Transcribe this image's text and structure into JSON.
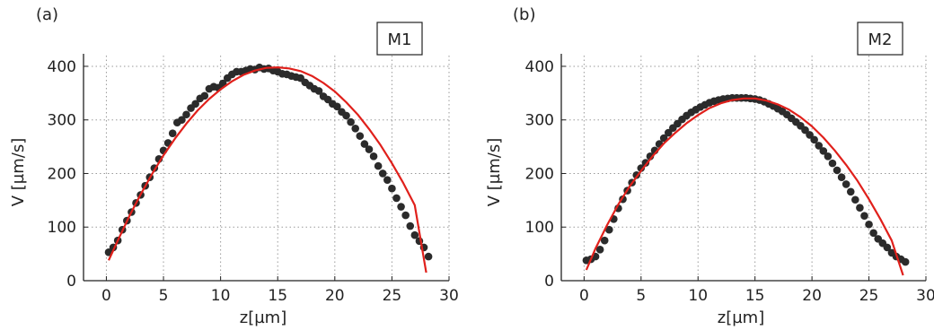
{
  "chart_data": [
    {
      "type": "scatter",
      "panel_label": "(a)",
      "legend": "M1",
      "xlabel": "z[µm]",
      "ylabel": "V [µm/s]",
      "xlim": [
        -2,
        30
      ],
      "ylim": [
        0,
        420
      ],
      "xticks": [
        "0",
        "5",
        "10",
        "15",
        "20",
        "25",
        "30"
      ],
      "yticks": [
        "0",
        "100",
        "200",
        "300",
        "400"
      ],
      "grid": true,
      "series": [
        {
          "marker": "circle",
          "color": "#2b2b2b",
          "x": [
            0.2,
            0.6,
            1.0,
            1.4,
            1.8,
            2.2,
            2.6,
            3.0,
            3.4,
            3.8,
            4.2,
            4.6,
            5.0,
            5.4,
            5.8,
            6.2,
            6.6,
            7.0,
            7.4,
            7.8,
            8.2,
            8.6,
            9.0,
            9.4,
            9.8,
            10.2,
            10.6,
            11.0,
            11.4,
            11.8,
            12.2,
            12.6,
            13.0,
            13.4,
            13.8,
            14.2,
            14.6,
            15.0,
            15.4,
            15.8,
            16.2,
            16.6,
            17.0,
            17.4,
            17.8,
            18.2,
            18.6,
            19.0,
            19.4,
            19.8,
            20.2,
            20.6,
            21.0,
            21.4,
            21.8,
            22.2,
            22.6,
            23.0,
            23.4,
            23.8,
            24.2,
            24.6,
            25.0,
            25.4,
            25.8,
            26.2,
            26.6,
            27.0,
            27.4,
            27.8,
            28.2
          ],
          "y": [
            53,
            62,
            75,
            95,
            112,
            128,
            145,
            160,
            177,
            193,
            210,
            227,
            243,
            257,
            275,
            295,
            300,
            310,
            322,
            330,
            340,
            345,
            358,
            362,
            360,
            368,
            378,
            385,
            390,
            390,
            392,
            395,
            394,
            398,
            395,
            396,
            392,
            390,
            386,
            385,
            382,
            380,
            378,
            370,
            364,
            358,
            354,
            344,
            338,
            330,
            325,
            315,
            308,
            296,
            284,
            270,
            255,
            245,
            232,
            214,
            200,
            188,
            172,
            154,
            138,
            122,
            102,
            85,
            74,
            62,
            45
          ]
        },
        {
          "marker": "line",
          "color": "#e0201b",
          "x": [
            0.2,
            1.0,
            2.0,
            3.0,
            4.0,
            5.0,
            6.0,
            7.0,
            8.0,
            9.0,
            10.0,
            11.0,
            12.0,
            13.0,
            14.0,
            15.0,
            16.0,
            17.0,
            18.0,
            19.0,
            20.0,
            21.0,
            22.0,
            23.0,
            24.0,
            25.0,
            26.0,
            27.0,
            28.0
          ],
          "y": [
            38,
            75,
            120,
            161,
            199,
            234,
            265,
            293,
            318,
            339,
            357,
            372,
            384,
            392,
            397,
            398,
            396,
            391,
            382,
            369,
            353,
            333,
            310,
            283,
            253,
            219,
            182,
            141,
            15
          ]
        }
      ]
    },
    {
      "type": "scatter",
      "panel_label": "(b)",
      "legend": "M2",
      "xlabel": "z[µm]",
      "ylabel": "V [µm/s]",
      "xlim": [
        -2,
        30
      ],
      "ylim": [
        0,
        420
      ],
      "xticks": [
        "0",
        "5",
        "10",
        "15",
        "20",
        "25",
        "30"
      ],
      "yticks": [
        "0",
        "100",
        "200",
        "300",
        "400"
      ],
      "grid": true,
      "series": [
        {
          "marker": "circle",
          "color": "#2b2b2b",
          "x": [
            0.2,
            0.6,
            1.0,
            1.4,
            1.8,
            2.2,
            2.6,
            3.0,
            3.4,
            3.8,
            4.2,
            4.6,
            5.0,
            5.4,
            5.8,
            6.2,
            6.6,
            7.0,
            7.4,
            7.8,
            8.2,
            8.6,
            9.0,
            9.4,
            9.8,
            10.2,
            10.6,
            11.0,
            11.4,
            11.8,
            12.2,
            12.6,
            13.0,
            13.4,
            13.8,
            14.2,
            14.6,
            15.0,
            15.4,
            15.8,
            16.2,
            16.6,
            17.0,
            17.4,
            17.8,
            18.2,
            18.6,
            19.0,
            19.4,
            19.8,
            20.2,
            20.6,
            21.0,
            21.4,
            21.8,
            22.2,
            22.6,
            23.0,
            23.4,
            23.8,
            24.2,
            24.6,
            25.0,
            25.4,
            25.8,
            26.2,
            26.6,
            27.0,
            27.4,
            27.8,
            28.2
          ],
          "y": [
            38,
            40,
            45,
            58,
            75,
            95,
            115,
            135,
            152,
            168,
            183,
            197,
            210,
            220,
            232,
            243,
            255,
            266,
            276,
            285,
            293,
            301,
            308,
            314,
            319,
            324,
            328,
            332,
            335,
            337,
            339,
            340,
            341,
            341,
            341,
            341,
            340,
            339,
            337,
            334,
            330,
            326,
            321,
            316,
            310,
            303,
            296,
            289,
            281,
            272,
            263,
            252,
            242,
            232,
            219,
            206,
            193,
            180,
            166,
            151,
            136,
            121,
            105,
            89,
            78,
            70,
            62,
            52,
            45,
            40,
            35
          ]
        },
        {
          "marker": "line",
          "color": "#e0201b",
          "x": [
            0.2,
            1.0,
            2.0,
            3.0,
            4.0,
            5.0,
            6.0,
            7.0,
            8.0,
            9.0,
            10.0,
            11.0,
            12.0,
            13.0,
            14.0,
            15.0,
            16.0,
            17.0,
            18.0,
            19.0,
            20.0,
            21.0,
            22.0,
            23.0,
            24.0,
            25.0,
            26.0,
            27.0,
            28.0
          ],
          "y": [
            20,
            60,
            103,
            142,
            176,
            205,
            232,
            256,
            276,
            294,
            309,
            322,
            331,
            337,
            340,
            340,
            336,
            329,
            319,
            305,
            288,
            267,
            243,
            216,
            186,
            152,
            115,
            75,
            10
          ]
        }
      ]
    }
  ]
}
